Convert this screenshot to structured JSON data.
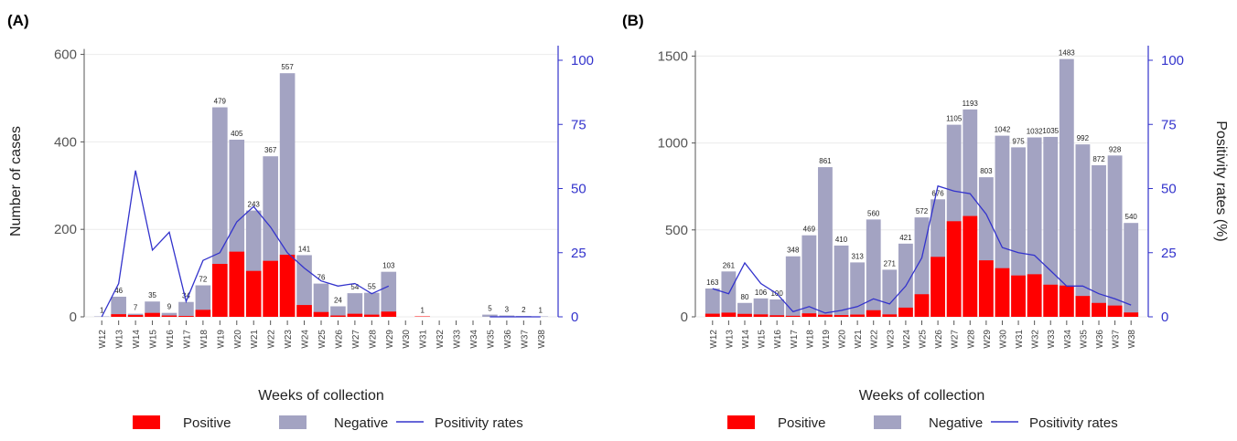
{
  "colors": {
    "positive": "#ff0000",
    "negative": "#a3a3c2",
    "rate": "#3333cc",
    "axis": "#555555",
    "grid": "#ebebeb"
  },
  "legend": {
    "positive": "Positive",
    "negative": "Negative",
    "rate": "Positivity rates"
  },
  "chart_data": [
    {
      "type": "bar",
      "panel_label": "(A)",
      "xlabel": "Weeks of collection",
      "ylabel": "Number of cases",
      "y2label": "",
      "ylim": [
        0,
        620
      ],
      "yticks": [
        0,
        200,
        400,
        600
      ],
      "y2lim": [
        0,
        100
      ],
      "y2ticks": [
        0,
        25,
        50,
        75,
        100
      ],
      "grid": true,
      "legend_position": "bottom",
      "categories": [
        "W12",
        "W13",
        "W14",
        "W15",
        "W16",
        "W17",
        "W18",
        "W19",
        "W20",
        "W21",
        "W22",
        "W23",
        "W24",
        "W25",
        "W26",
        "W27",
        "W28",
        "W29",
        "W30",
        "W31",
        "W32",
        "W33",
        "W34",
        "W35",
        "W36",
        "W37",
        "W38"
      ],
      "bar_labels": [
        "1",
        "46",
        "7",
        "35",
        "9",
        "34",
        "72",
        "479",
        "405",
        "243",
        "367",
        "557",
        "141",
        "76",
        "24",
        "54",
        "55",
        "103",
        "",
        "1",
        "",
        "",
        "",
        "5",
        "3",
        "2",
        "1"
      ],
      "totals": [
        1,
        46,
        7,
        35,
        9,
        34,
        72,
        479,
        405,
        243,
        367,
        557,
        141,
        76,
        24,
        54,
        55,
        103,
        0,
        1,
        0,
        0,
        0,
        5,
        3,
        2,
        1
      ],
      "positive": [
        0,
        6,
        4,
        9,
        3,
        2,
        16,
        121,
        149,
        105,
        128,
        142,
        27,
        11,
        3,
        7,
        5,
        12,
        0,
        1,
        0,
        0,
        0,
        0,
        0,
        0,
        0
      ],
      "positivity_rate": [
        0,
        13,
        57,
        26,
        33,
        6,
        22,
        25,
        37,
        43,
        35,
        25,
        19,
        14,
        12,
        13,
        9,
        12,
        null,
        null,
        null,
        null,
        null,
        0,
        0,
        0,
        0
      ]
    },
    {
      "type": "bar",
      "panel_label": "(B)",
      "xlabel": "Weeks of collection",
      "ylabel": "",
      "y2label": "Positivity rates (%)",
      "ylim": [
        0,
        1560
      ],
      "yticks": [
        0,
        500,
        1000,
        1500
      ],
      "y2lim": [
        0,
        100
      ],
      "y2ticks": [
        0,
        25,
        50,
        75,
        100
      ],
      "grid": true,
      "legend_position": "bottom",
      "categories": [
        "W12",
        "W13",
        "W14",
        "W15",
        "W16",
        "W17",
        "W18",
        "W19",
        "W20",
        "W21",
        "W22",
        "W23",
        "W24",
        "W25",
        "W26",
        "W27",
        "W28",
        "W29",
        "W30",
        "W31",
        "W32",
        "W33",
        "W34",
        "W35",
        "W36",
        "W37",
        "W38"
      ],
      "bar_labels": [
        "163",
        "261",
        "80",
        "106",
        "100",
        "348",
        "469",
        "861",
        "410",
        "313",
        "560",
        "271",
        "421",
        "572",
        "676",
        "1105",
        "1193",
        "803",
        "1042",
        "975",
        "1032",
        "1035",
        "1483",
        "992",
        "872",
        "928",
        "540"
      ],
      "totals": [
        163,
        261,
        80,
        106,
        100,
        348,
        469,
        861,
        410,
        313,
        560,
        271,
        421,
        572,
        676,
        1105,
        1193,
        803,
        1042,
        975,
        1032,
        1035,
        1483,
        992,
        872,
        928,
        540
      ],
      "positive": [
        18,
        24,
        17,
        14,
        9,
        6,
        20,
        12,
        10,
        13,
        38,
        14,
        53,
        130,
        345,
        550,
        580,
        325,
        280,
        238,
        245,
        185,
        180,
        120,
        80,
        65,
        25
      ],
      "positivity_rate": [
        11,
        9,
        21,
        13,
        9,
        2,
        4,
        1.5,
        2.5,
        4,
        7,
        5,
        12,
        23,
        51,
        49,
        48,
        40,
        27,
        25,
        24,
        18,
        12,
        12,
        9,
        7,
        4.6
      ]
    }
  ]
}
